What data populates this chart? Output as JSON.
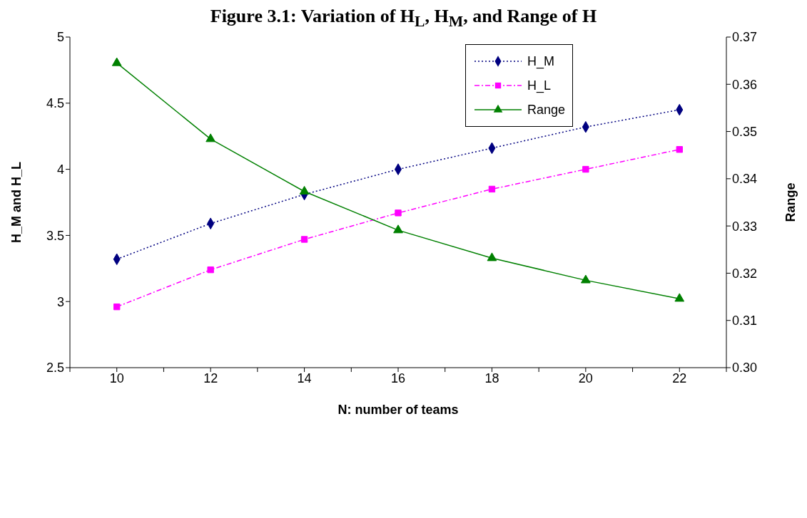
{
  "chart_data": {
    "type": "line",
    "title": "Figure 3.1: Variation of H$_{L}$, H$_{M}$, and Range of H",
    "xlabel": "N: number of teams",
    "ylabel": "H_M and H_L",
    "y2label": "Range",
    "x": [
      10,
      12,
      14,
      16,
      18,
      20,
      22
    ],
    "series": [
      {
        "name": "H_M",
        "color": "#000080",
        "marker": "diamond",
        "line_style": "dotted",
        "values": [
          3.32,
          3.59,
          3.81,
          4.0,
          4.16,
          4.32,
          4.45
        ]
      },
      {
        "name": "H_L",
        "color": "#ff00ff",
        "marker": "square",
        "line_style": "dashed",
        "values": [
          2.96,
          3.24,
          3.47,
          3.67,
          3.85,
          4.0,
          4.15
        ]
      },
      {
        "name": "Range",
        "color": "#008000",
        "marker": "triangle",
        "line_style": "solid",
        "axis": "y2",
        "values": [
          0.3645,
          0.3484,
          0.3373,
          0.3291,
          0.3232,
          0.3185,
          0.3146
        ]
      }
    ],
    "xlim": [
      9,
      23
    ],
    "xticks": [
      {
        "value": 9,
        "label": null
      },
      10,
      {
        "value": 11,
        "label": null
      },
      12,
      {
        "value": 13,
        "label": null
      },
      14,
      {
        "value": 15,
        "label": null
      },
      16,
      {
        "value": 17,
        "label": null
      },
      18,
      {
        "value": 19,
        "label": null
      },
      20,
      {
        "value": 21,
        "label": null
      },
      22,
      {
        "value": 23,
        "label": null
      }
    ],
    "ylim": [
      2.5,
      5
    ],
    "yticks": [
      2.5,
      3,
      3.5,
      4,
      4.5,
      5
    ],
    "y2lim": [
      0.3,
      0.37
    ],
    "y2ticks": [
      {
        "value": 0.3,
        "label": "0.30"
      },
      0.31,
      0.32,
      0.33,
      0.34,
      0.35,
      0.36,
      0.37
    ],
    "grid": false,
    "legend": "top right"
  }
}
